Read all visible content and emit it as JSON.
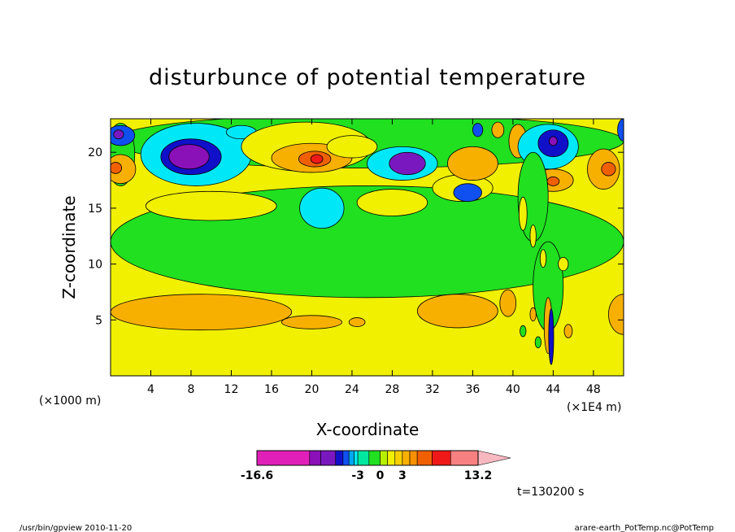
{
  "chart_data": {
    "type": "heatmap",
    "title": "disturbunce of potential temperature",
    "xlabel": "X-coordinate",
    "ylabel": "Z-coordinate",
    "x_unit_left": "(×1000 m)",
    "x_unit_right": "(×1E4 m)",
    "xlim": [
      0,
      51
    ],
    "ylim": [
      0,
      23
    ],
    "x_ticks": [
      "4",
      "8",
      "12",
      "16",
      "20",
      "24",
      "28",
      "32",
      "36",
      "40",
      "44",
      "48"
    ],
    "y_ticks": [
      "5",
      "10",
      "15",
      "20"
    ],
    "x_tick_values": [
      4,
      8,
      12,
      16,
      20,
      24,
      28,
      32,
      36,
      40,
      44,
      48
    ],
    "y_tick_values": [
      5,
      10,
      15,
      20
    ],
    "background_level": "0 to 3 (yellow)",
    "colorbar": {
      "labels": [
        "-16.6",
        "-3",
        "0",
        "3",
        "13.2"
      ],
      "label_values": [
        -16.6,
        -3,
        0,
        3,
        13.2
      ],
      "min": -16.6,
      "max": 13.2,
      "segments": [
        {
          "from": -16.6,
          "to": -9.5,
          "color": "#e020b8"
        },
        {
          "from": -9.5,
          "to": -8.0,
          "color": "#8a10b8"
        },
        {
          "from": -8.0,
          "to": -6.0,
          "color": "#7a18c0"
        },
        {
          "from": -6.0,
          "to": -5.0,
          "color": "#1010c8"
        },
        {
          "from": -5.0,
          "to": -4.2,
          "color": "#1050f0"
        },
        {
          "from": -4.2,
          "to": -3.5,
          "color": "#00a8f0"
        },
        {
          "from": -3.5,
          "to": -3.0,
          "color": "#00e8f8"
        },
        {
          "from": -3.0,
          "to": -1.5,
          "color": "#00e8a0"
        },
        {
          "from": -1.5,
          "to": 0.0,
          "color": "#20e020"
        },
        {
          "from": 0.0,
          "to": 1.0,
          "color": "#b8f000"
        },
        {
          "from": 1.0,
          "to": 2.0,
          "color": "#f0f000"
        },
        {
          "from": 2.0,
          "to": 3.0,
          "color": "#f8d000"
        },
        {
          "from": 3.0,
          "to": 4.0,
          "color": "#f8b000"
        },
        {
          "from": 4.0,
          "to": 5.0,
          "color": "#f89000"
        },
        {
          "from": 5.0,
          "to": 7.0,
          "color": "#f06000"
        },
        {
          "from": 7.0,
          "to": 9.5,
          "color": "#f01818"
        },
        {
          "from": 9.5,
          "to": 13.2,
          "color": "#f88080"
        }
      ],
      "extend_color": "#f8b8c0"
    },
    "features": [
      {
        "x": 25.5,
        "z": 12.0,
        "rx": 25.5,
        "rz": 5.0,
        "level": -1.0
      },
      {
        "x": 25.5,
        "z": 21.0,
        "rx": 25.5,
        "rz": 2.4,
        "level": -1.0
      },
      {
        "x": 1.0,
        "z": 19.8,
        "rx": 1.4,
        "rz": 2.8,
        "level": -1.0
      },
      {
        "x": 10.0,
        "z": 15.2,
        "rx": 6.5,
        "rz": 1.3,
        "level": 1.5
      },
      {
        "x": 28.0,
        "z": 15.5,
        "rx": 3.5,
        "rz": 1.2,
        "level": 1.5
      },
      {
        "x": 35.0,
        "z": 16.8,
        "rx": 3.0,
        "rz": 1.2,
        "level": 1.5
      },
      {
        "x": 21.0,
        "z": 15.0,
        "rx": 2.2,
        "rz": 1.8,
        "level": -3.2
      },
      {
        "x": 1.0,
        "z": 18.5,
        "rx": 1.5,
        "rz": 1.3,
        "level": 3.5
      },
      {
        "x": 0.5,
        "z": 18.6,
        "rx": 0.6,
        "rz": 0.5,
        "level": 5.5
      },
      {
        "x": 1.0,
        "z": 21.5,
        "rx": 1.4,
        "rz": 0.9,
        "level": -4.5
      },
      {
        "x": 0.8,
        "z": 21.6,
        "rx": 0.5,
        "rz": 0.4,
        "level": -7.0
      },
      {
        "x": 8.5,
        "z": 19.8,
        "rx": 5.5,
        "rz": 2.8,
        "level": -3.2
      },
      {
        "x": 8.0,
        "z": 19.6,
        "rx": 3.0,
        "rz": 1.6,
        "level": -5.5
      },
      {
        "x": 7.8,
        "z": 19.6,
        "rx": 2.0,
        "rz": 1.1,
        "level": -8.5
      },
      {
        "x": 13.0,
        "z": 21.8,
        "rx": 1.5,
        "rz": 0.6,
        "level": -3.2
      },
      {
        "x": 19.5,
        "z": 20.5,
        "rx": 6.5,
        "rz": 2.2,
        "level": 1.5
      },
      {
        "x": 20.0,
        "z": 19.5,
        "rx": 4.0,
        "rz": 1.3,
        "level": 3.5
      },
      {
        "x": 20.3,
        "z": 19.4,
        "rx": 1.6,
        "rz": 0.7,
        "level": 6.0
      },
      {
        "x": 20.5,
        "z": 19.4,
        "rx": 0.6,
        "rz": 0.4,
        "level": 8.0
      },
      {
        "x": 29.0,
        "z": 19.0,
        "rx": 3.5,
        "rz": 1.5,
        "level": -3.2
      },
      {
        "x": 29.5,
        "z": 19.0,
        "rx": 1.8,
        "rz": 1.0,
        "level": -6.5
      },
      {
        "x": 24.0,
        "z": 20.5,
        "rx": 2.5,
        "rz": 1.0,
        "level": 1.5
      },
      {
        "x": 35.5,
        "z": 16.4,
        "rx": 1.4,
        "rz": 0.8,
        "level": -4.5
      },
      {
        "x": 36.0,
        "z": 19.0,
        "rx": 2.5,
        "rz": 1.5,
        "level": 3.5
      },
      {
        "x": 36.5,
        "z": 22.0,
        "rx": 0.5,
        "rz": 0.6,
        "level": -4.5
      },
      {
        "x": 38.5,
        "z": 22.0,
        "rx": 0.6,
        "rz": 0.7,
        "level": 3.5
      },
      {
        "x": 40.5,
        "z": 21.0,
        "rx": 0.9,
        "rz": 1.5,
        "level": 3.5
      },
      {
        "x": 43.5,
        "z": 20.5,
        "rx": 3.0,
        "rz": 2.0,
        "level": -3.5
      },
      {
        "x": 44.0,
        "z": 20.8,
        "rx": 1.5,
        "rz": 1.2,
        "level": -5.5
      },
      {
        "x": 44.0,
        "z": 21.0,
        "rx": 0.4,
        "rz": 0.4,
        "level": -9.0
      },
      {
        "x": 44.0,
        "z": 17.5,
        "rx": 2.0,
        "rz": 1.0,
        "level": 3.5
      },
      {
        "x": 44.0,
        "z": 17.4,
        "rx": 0.6,
        "rz": 0.4,
        "level": 5.5
      },
      {
        "x": 49.0,
        "z": 18.5,
        "rx": 1.6,
        "rz": 1.8,
        "level": 3.5
      },
      {
        "x": 49.5,
        "z": 18.5,
        "rx": 0.7,
        "rz": 0.6,
        "level": 5.5
      },
      {
        "x": 51.0,
        "z": 22.0,
        "rx": 0.6,
        "rz": 1.0,
        "level": -4.5
      },
      {
        "x": 9.0,
        "z": 5.7,
        "rx": 9.0,
        "rz": 1.6,
        "level": 3.5
      },
      {
        "x": 20.0,
        "z": 4.8,
        "rx": 3.0,
        "rz": 0.6,
        "level": 3.5
      },
      {
        "x": 24.5,
        "z": 4.8,
        "rx": 0.8,
        "rz": 0.4,
        "level": 3.5
      },
      {
        "x": 34.5,
        "z": 5.8,
        "rx": 4.0,
        "rz": 1.5,
        "level": 3.5
      },
      {
        "x": 39.5,
        "z": 6.5,
        "rx": 0.8,
        "rz": 1.2,
        "level": 3.5
      },
      {
        "x": 51.0,
        "z": 5.5,
        "rx": 1.5,
        "rz": 1.8,
        "level": 3.5
      },
      {
        "x": 43.5,
        "z": 8.0,
        "rx": 1.5,
        "rz": 4.0,
        "level": -1.0
      },
      {
        "x": 43.5,
        "z": 4.5,
        "rx": 0.4,
        "rz": 2.5,
        "level": 3.5
      },
      {
        "x": 43.8,
        "z": 3.5,
        "rx": 0.25,
        "rz": 2.5,
        "level": -5.5
      },
      {
        "x": 42.0,
        "z": 5.5,
        "rx": 0.3,
        "rz": 0.6,
        "level": 3.5
      },
      {
        "x": 45.5,
        "z": 4.0,
        "rx": 0.4,
        "rz": 0.6,
        "level": 3.5
      },
      {
        "x": 41.0,
        "z": 4.0,
        "rx": 0.3,
        "rz": 0.5,
        "level": -1.0
      },
      {
        "x": 42.5,
        "z": 3.0,
        "rx": 0.3,
        "rz": 0.5,
        "level": -1.0
      },
      {
        "x": 42.0,
        "z": 16.0,
        "rx": 1.5,
        "rz": 4.0,
        "level": -1.0
      },
      {
        "x": 42.0,
        "z": 12.5,
        "rx": 0.3,
        "rz": 1.0,
        "level": 1.5
      },
      {
        "x": 43.0,
        "z": 10.5,
        "rx": 0.3,
        "rz": 0.8,
        "level": 1.5
      },
      {
        "x": 45.0,
        "z": 10.0,
        "rx": 0.5,
        "rz": 0.6,
        "level": 1.5
      },
      {
        "x": 41.0,
        "z": 14.5,
        "rx": 0.4,
        "rz": 1.5,
        "level": 1.5
      }
    ],
    "time_label": "t=130200 s",
    "footer_left": "/usr/bin/gpview  2010-11-20",
    "footer_right": "arare-earth_PotTemp.nc@PotTemp"
  }
}
